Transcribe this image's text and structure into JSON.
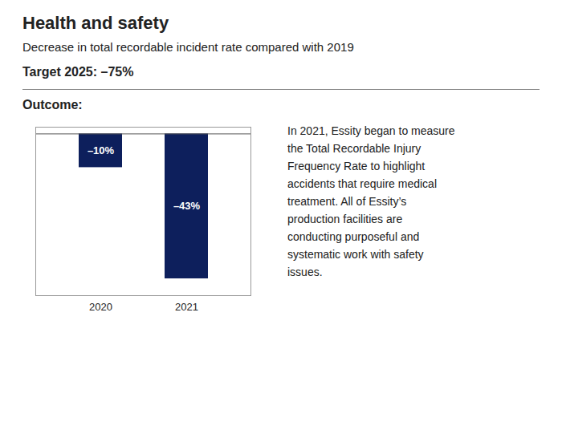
{
  "chart_data": {
    "type": "bar",
    "title": "Health and safety",
    "subtitle": "Decrease in total recordable incident rate compared with 2019",
    "annotations": [
      "Target 2025: –75%",
      "Outcome:",
      "In 2021, Essity began to measure",
      "the Total Recordable Injury",
      "Frequency Rate to highlight",
      "accidents that require medical",
      "treatment. All of Essity’s",
      "production facilities are",
      "conducting purposeful and",
      "systematic work with safety",
      "issues."
    ],
    "categories": [
      "2020",
      "2021"
    ],
    "values": [
      -10,
      -43
    ],
    "value_labels": [
      "–10%",
      "–43%"
    ],
    "data_labels": true,
    "color": "#0d1f5c",
    "ylim": [
      -48,
      2
    ],
    "tick_labels": "x",
    "grid": false
  }
}
